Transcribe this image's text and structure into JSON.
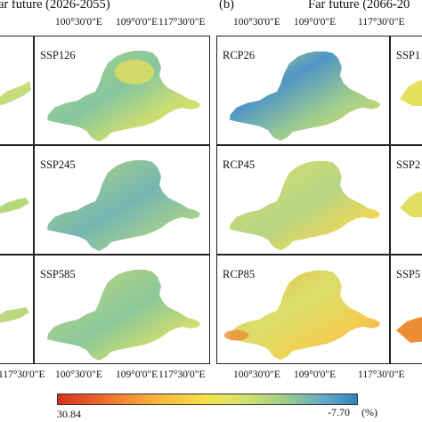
{
  "left_figure": {
    "title": "ar future (2026-2055)",
    "x_ticks": [
      "100°30'0\"E",
      "109°0'0\"E",
      "117°30'0\"E"
    ],
    "panels": [
      "SSP126",
      "SSP245",
      "SSP585"
    ]
  },
  "right_figure": {
    "letter": "(b)",
    "title": "Far future (2066-20",
    "x_ticks": [
      "100°30'0\"E",
      "109°0'0\"E",
      "117°30'0\"E"
    ],
    "panels": [
      "RCP26",
      "RCP45",
      "RCP85"
    ],
    "cut_labels": [
      "SSP1",
      "SSP2",
      "SSP5"
    ]
  },
  "colorbar": {
    "min_label": "30.84",
    "max_label": "-7.70",
    "unit": "(%)",
    "colors": [
      "#d7301f",
      "#ef6a2b",
      "#f9b43b",
      "#f6e34a",
      "#d8e26a",
      "#9ccc8a",
      "#5fa7c8",
      "#2e82c0"
    ]
  }
}
